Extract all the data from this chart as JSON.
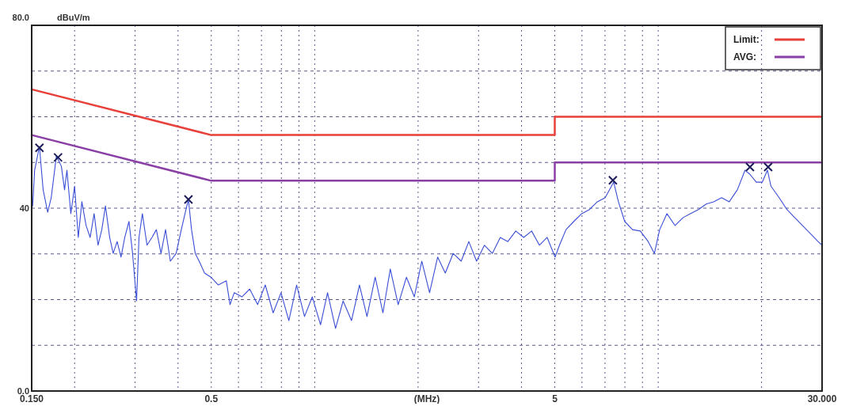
{
  "chart_data": {
    "type": "line",
    "ylabel": "dBuV/m",
    "xlabel": "(MHz)",
    "log": "x",
    "grid": true,
    "legend": "top right",
    "xlim": [
      0.15,
      30
    ],
    "ylim": [
      0,
      80
    ],
    "xticks": [
      {
        "value": 0.15,
        "label": "0.150"
      },
      {
        "value": 0.2,
        "label": null
      },
      {
        "value": 0.3,
        "label": null
      },
      {
        "value": 0.4,
        "label": null
      },
      0.5,
      {
        "value": 0.6,
        "label": null
      },
      {
        "value": 0.7,
        "label": null
      },
      {
        "value": 0.8,
        "label": null
      },
      {
        "value": 0.9,
        "label": null
      },
      {
        "value": 1,
        "label": null
      },
      {
        "value": 2,
        "label": null
      },
      {
        "value": 3,
        "label": null
      },
      {
        "value": 4,
        "label": null
      },
      5,
      {
        "value": 6,
        "label": null
      },
      {
        "value": 7,
        "label": null
      },
      {
        "value": 8,
        "label": null
      },
      {
        "value": 9,
        "label": null
      },
      {
        "value": 10,
        "label": null
      },
      {
        "value": 20,
        "label": null
      },
      {
        "value": 30,
        "label": "30.000"
      }
    ],
    "yticks": [
      {
        "value": 0,
        "label": "0.0"
      },
      {
        "value": 10,
        "label": null
      },
      {
        "value": 20,
        "label": null
      },
      {
        "value": 30,
        "label": null
      },
      40,
      {
        "value": 50,
        "label": null
      },
      {
        "value": 60,
        "label": null
      },
      {
        "value": 70,
        "label": null
      },
      {
        "value": 80,
        "label": "80.0"
      }
    ],
    "series": [
      {
        "name": "Limit:",
        "color": "#e8403a",
        "marker": "none",
        "x": [
          0.15,
          0.5,
          5,
          5,
          30
        ],
        "values": [
          66,
          56,
          56,
          60,
          60
        ]
      },
      {
        "name": "AVG:",
        "color": "#8a3fa6",
        "marker": "none",
        "x": [
          0.15,
          0.5,
          5,
          5,
          30
        ],
        "values": [
          56,
          46,
          46,
          50,
          50
        ]
      },
      {
        "color": "#3b4fd6",
        "marker": "none",
        "x": [
          0.151,
          0.153,
          0.158,
          0.162,
          0.167,
          0.171,
          0.177,
          0.183,
          0.187,
          0.19,
          0.195,
          0.2,
          0.205,
          0.21,
          0.216,
          0.222,
          0.228,
          0.234,
          0.24,
          0.246,
          0.253,
          0.259,
          0.266,
          0.273,
          0.28,
          0.288,
          0.295,
          0.303,
          0.308,
          0.315,
          0.325,
          0.336,
          0.346,
          0.357,
          0.368,
          0.38,
          0.395,
          0.409,
          0.422,
          0.429,
          0.438,
          0.449,
          0.461,
          0.478,
          0.499,
          0.524,
          0.553,
          0.567,
          0.583,
          0.614,
          0.647,
          0.682,
          0.718,
          0.757,
          0.798,
          0.841,
          0.886,
          0.934,
          0.984,
          1.04,
          1.09,
          1.15,
          1.21,
          1.28,
          1.35,
          1.42,
          1.5,
          1.58,
          1.66,
          1.75,
          1.85,
          1.95,
          2.05,
          2.16,
          2.28,
          2.4,
          2.53,
          2.67,
          2.81,
          2.96,
          3.12,
          3.29,
          3.47,
          3.65,
          3.85,
          4.06,
          4.28,
          4.51,
          4.75,
          5.01,
          5.16,
          5.39,
          5.68,
          5.99,
          6.31,
          6.65,
          7.01,
          7.42,
          7.66,
          7.99,
          8.42,
          8.87,
          9.35,
          9.75,
          10.1,
          10.6,
          11.2,
          11.8,
          12.4,
          13.1,
          13.8,
          14.5,
          15.3,
          16.1,
          17,
          17.9,
          18.5,
          19.3,
          20.1,
          20.8,
          21.3,
          22.5,
          23.7,
          25,
          26.3,
          27.7,
          29.2,
          30
        ],
        "values": [
          40.5,
          48.3,
          53.5,
          44,
          39.1,
          42.3,
          51.4,
          49.2,
          44,
          48.3,
          38.8,
          44.8,
          33.6,
          41.4,
          36.2,
          33.6,
          38.8,
          31.9,
          35.3,
          40.5,
          33.6,
          30.1,
          32.7,
          29.3,
          33.6,
          37.1,
          30.1,
          19.7,
          33.6,
          38.8,
          31.9,
          33.6,
          35.3,
          30.1,
          35.3,
          28.4,
          30.1,
          35.3,
          39.7,
          41.9,
          35.3,
          30.1,
          28.4,
          25.8,
          24.9,
          23.2,
          24.1,
          18.9,
          21.5,
          20.6,
          22.3,
          18.9,
          23.2,
          17.1,
          21.5,
          15.4,
          23.2,
          16.3,
          20.6,
          14.5,
          21.5,
          13.7,
          19.7,
          15.4,
          23.2,
          16.3,
          24.9,
          17.1,
          26.7,
          18.9,
          24.9,
          20.6,
          28.4,
          21.5,
          29.3,
          25.8,
          30.1,
          28.4,
          32.7,
          28.4,
          31.9,
          30.1,
          33.6,
          32.7,
          35,
          33.6,
          35,
          31.9,
          33.6,
          29.3,
          31.9,
          35.3,
          37.1,
          38.8,
          39.7,
          41.4,
          42.3,
          45.7,
          41.4,
          37.1,
          35.3,
          35,
          32.7,
          30.1,
          35.3,
          38.8,
          36.2,
          37.9,
          38.8,
          39.7,
          40.9,
          41.4,
          42.3,
          41.4,
          44,
          48.3,
          47.4,
          45.7,
          45.7,
          48.3,
          44.8,
          42.3,
          39.7,
          37.9,
          36.2,
          34.5,
          32.7,
          31.9
        ]
      },
      {
        "type": "scatter",
        "color": "#1c1c5a",
        "marker": "cross",
        "x": [
          0.158,
          0.179,
          0.429,
          7.38,
          18.5,
          20.9
        ],
        "values": [
          53.2,
          51.1,
          41.9,
          46.1,
          49,
          49
        ]
      }
    ]
  }
}
